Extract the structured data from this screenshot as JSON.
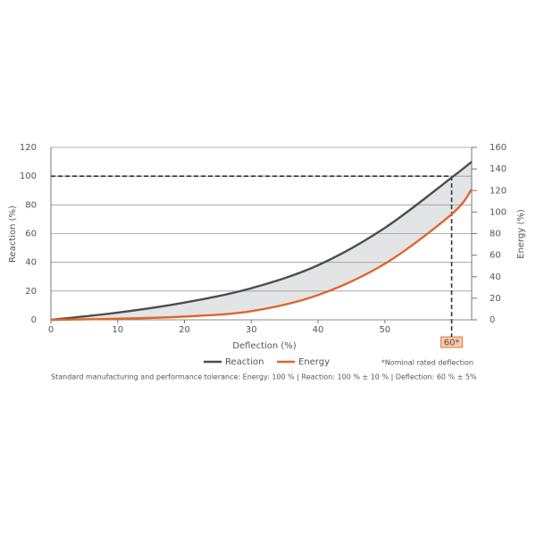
{
  "chart_data": {
    "type": "line",
    "x_label": "Deflection (%)",
    "y_label": "Reaction (%)",
    "y2_label": "Energy (%)",
    "x": [
      0,
      10,
      20,
      30,
      40,
      50,
      60,
      63
    ],
    "series": [
      {
        "name": "Reaction",
        "color": "#4d4d4d",
        "values": [
          0,
          5,
          12,
          22,
          38,
          64,
          99,
          110
        ]
      },
      {
        "name": "Energy",
        "color": "#e0662a",
        "axis": "y2",
        "values": [
          0,
          1,
          3,
          8,
          23,
          52,
          98,
          121
        ]
      }
    ],
    "xlim": [
      0,
      63
    ],
    "xticks": [
      0,
      10,
      20,
      30,
      40,
      50,
      {
        "value": 60,
        "label": "60*"
      }
    ],
    "ylim": [
      0,
      120
    ],
    "yticks": [
      0,
      20,
      40,
      60,
      80,
      100,
      120
    ],
    "y2lim": [
      0,
      160
    ],
    "y2ticks": [
      0,
      20,
      40,
      60,
      80,
      100,
      120,
      140,
      160
    ],
    "grid": true,
    "fill_between": "#e3e4e5",
    "reference": {
      "x": 60,
      "y": 100
    },
    "note": "*Nominal rated deflection",
    "footnote": "Standard manufacturing and performance tolerance: Energy: 100 % | Reaction: 100 % ± 10 % | Deflection: 60 % ± 5%"
  }
}
